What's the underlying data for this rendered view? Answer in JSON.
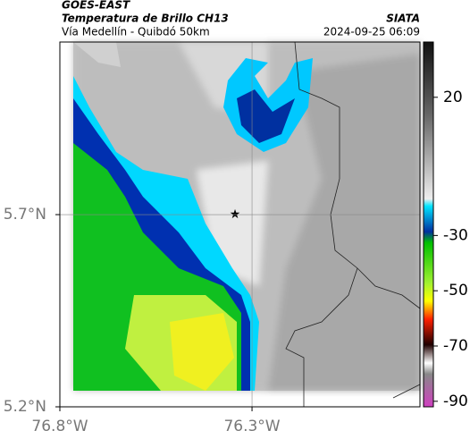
{
  "header": {
    "title": "GOES-EAST",
    "subtitle": "Temperatura de Brillo CH13",
    "route": "Vía Medellín - Quibdó 50km",
    "source": "SIATA",
    "timestamp": "2024-09-25 06:09"
  },
  "map": {
    "xlim": [
      -76.8,
      -75.863
    ],
    "ylim": [
      5.2,
      6.149
    ],
    "xticks": [
      {
        "value": -76.8,
        "label": "76.8°W"
      },
      {
        "value": -76.3,
        "label": "76.3°W"
      }
    ],
    "yticks": [
      {
        "value": 5.2,
        "label": "5.2°N"
      },
      {
        "value": 5.7,
        "label": "5.7°N"
      }
    ],
    "grid": true
  },
  "colorbar": {
    "clim": [
      -92,
      40
    ],
    "ticks": [
      20,
      -30,
      -50,
      -70,
      -90
    ]
  }
}
